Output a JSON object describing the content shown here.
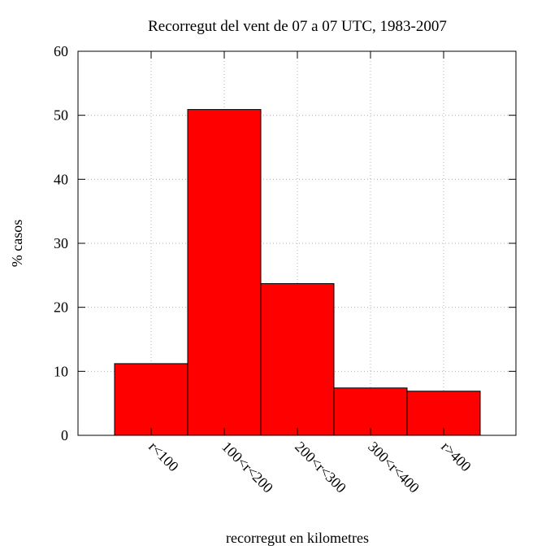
{
  "chart_data": {
    "type": "bar",
    "title": "Recorregut del vent de 07 a 07 UTC, 1983-2007",
    "xlabel": "recorregut en kilometres",
    "ylabel": "% casos",
    "categories": [
      "r<100",
      "100<r<200",
      "200<r<300",
      "300<r<400",
      "r>400"
    ],
    "values": [
      11.2,
      50.9,
      23.7,
      7.4,
      6.9
    ],
    "ylim": [
      0,
      60
    ],
    "yticks": [
      0,
      10,
      20,
      30,
      40,
      50,
      60
    ],
    "grid": true,
    "bar_color": "#ff0000"
  }
}
